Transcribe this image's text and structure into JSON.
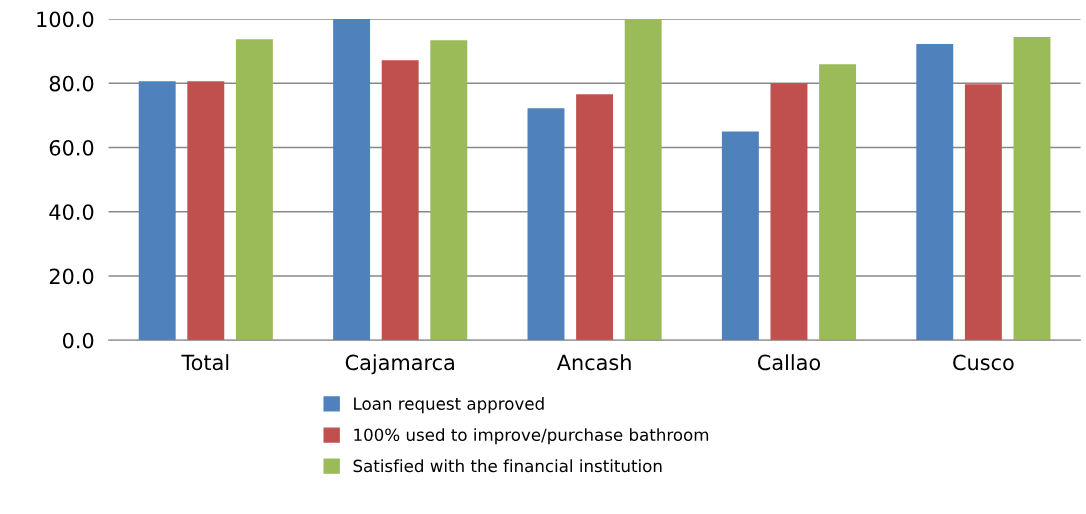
{
  "chart_data": {
    "type": "bar",
    "categories": [
      "Total",
      "Cajamarca",
      "Ancash",
      "Callao",
      "Cusco"
    ],
    "series": [
      {
        "name": "Loan request approved",
        "color": "#4f81bd",
        "values": [
          80.6,
          100.0,
          72.2,
          65.0,
          92.2
        ]
      },
      {
        "name": "100% used to improve/purchase bathroom",
        "color": "#c0504d",
        "values": [
          80.6,
          87.2,
          76.6,
          80.0,
          79.7
        ]
      },
      {
        "name": "Satisfied with the financial institution",
        "color": "#9bbb59",
        "values": [
          93.7,
          93.4,
          100.0,
          85.9,
          94.4
        ]
      }
    ],
    "ylim": [
      0,
      100
    ],
    "yticks": [
      {
        "value": 0,
        "label": "0.0"
      },
      {
        "value": 20,
        "label": "20.0"
      },
      {
        "value": 40,
        "label": "40.0"
      },
      {
        "value": 60,
        "label": "60.0"
      },
      {
        "value": 80,
        "label": "80.0"
      },
      {
        "value": 100,
        "label": "100.0"
      }
    ],
    "grid": "y",
    "legend": "bottom"
  }
}
